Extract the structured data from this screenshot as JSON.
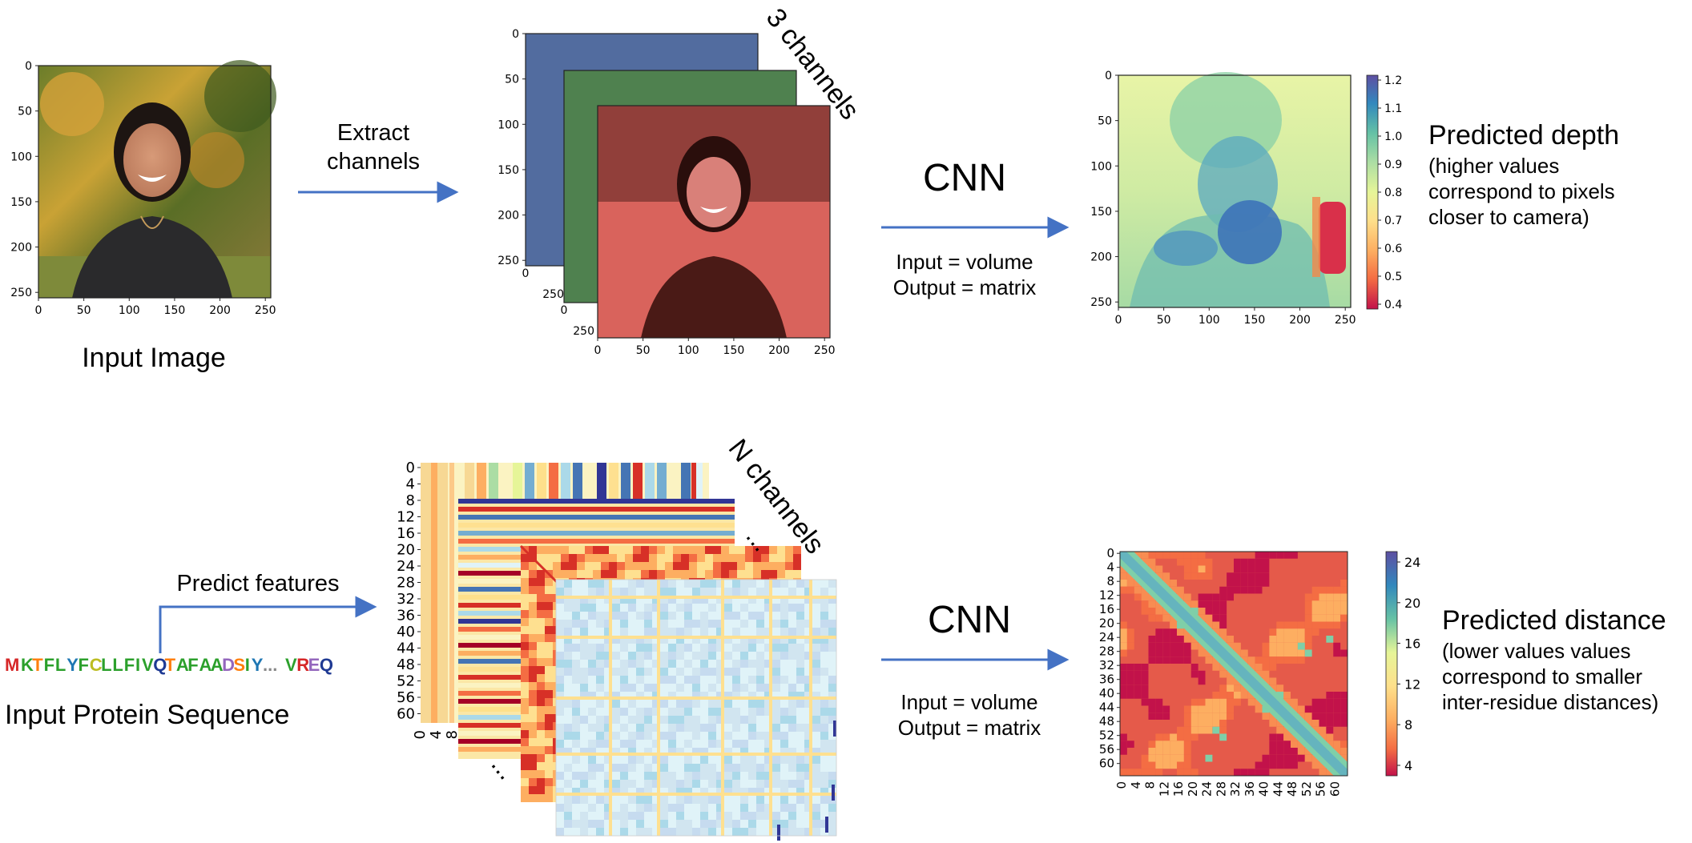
{
  "top": {
    "input_label": "Input Image",
    "arrow1_label": [
      "Extract",
      "channels"
    ],
    "channels_label": "3 channels",
    "cnn_label": "CNN",
    "cnn_io": [
      "Input = volume",
      "Output = matrix"
    ],
    "output_title": "Predicted depth",
    "output_desc": [
      "(higher values",
      "correspond to pixels",
      "closer to camera)"
    ],
    "img_ticks": [
      "0",
      "50",
      "100",
      "150",
      "200",
      "250"
    ],
    "colorbar_ticks": [
      "1.2",
      "1.1",
      "1.0",
      "0.9",
      "0.8",
      "0.7",
      "0.6",
      "0.5",
      "0.4"
    ],
    "channel_colors": [
      "#4a6fb5",
      "#4e9a4e",
      "#c9504a"
    ]
  },
  "bottom": {
    "sequence": [
      {
        "t": "M",
        "c": "#d62728"
      },
      {
        "t": "K",
        "c": "#2ca02c"
      },
      {
        "t": "T",
        "c": "#ff7f0e"
      },
      {
        "t": "F",
        "c": "#2ca02c"
      },
      {
        "t": "L",
        "c": "#2ca02c"
      },
      {
        "t": "Y",
        "c": "#1f77b4"
      },
      {
        "t": "F",
        "c": "#2ca02c"
      },
      {
        "t": "C",
        "c": "#bcbd22"
      },
      {
        "t": "L",
        "c": "#2ca02c"
      },
      {
        "t": "L",
        "c": "#2ca02c"
      },
      {
        "t": "F",
        "c": "#2ca02c"
      },
      {
        "t": "I",
        "c": "#2ca02c"
      },
      {
        "t": "V",
        "c": "#2ca02c"
      },
      {
        "t": "Q",
        "c": "#1f3a93"
      },
      {
        "t": "T",
        "c": "#ff7f0e"
      },
      {
        "t": "A",
        "c": "#2ca02c"
      },
      {
        "t": "F",
        "c": "#2ca02c"
      },
      {
        "t": "A",
        "c": "#2ca02c"
      },
      {
        "t": "A",
        "c": "#2ca02c"
      },
      {
        "t": "D",
        "c": "#9467bd"
      },
      {
        "t": "S",
        "c": "#ff7f0e"
      },
      {
        "t": "I",
        "c": "#2ca02c"
      },
      {
        "t": "Y",
        "c": "#1f77b4"
      },
      {
        "t": "...",
        "c": "#888888"
      },
      {
        "t": "V",
        "c": "#2ca02c"
      },
      {
        "t": "R",
        "c": "#d62728"
      },
      {
        "t": "E",
        "c": "#9467bd"
      },
      {
        "t": "Q",
        "c": "#1f3a93"
      }
    ],
    "input_label": "Input Protein Sequence",
    "arrow_label": "Predict features",
    "channels_label": "N channels",
    "ellipsis": "...",
    "cnn_label": "CNN",
    "cnn_io": [
      "Input = volume",
      "Output = matrix"
    ],
    "output_title": "Predicted distance",
    "output_desc": [
      "(lower values values",
      "correspond to smaller",
      "inter-residue distances)"
    ],
    "feat_yticks": [
      "0",
      "4",
      "8",
      "12",
      "16",
      "20",
      "24",
      "28",
      "32",
      "36",
      "40",
      "44",
      "48",
      "52",
      "56",
      "60"
    ],
    "feat_xticks": [
      "0",
      "4",
      "8"
    ],
    "dist_ticks": [
      "0",
      "4",
      "8",
      "12",
      "16",
      "20",
      "24",
      "28",
      "32",
      "36",
      "40",
      "44",
      "48",
      "52",
      "56",
      "60"
    ],
    "colorbar_ticks": [
      "24",
      "20",
      "16",
      "12",
      "8",
      "4"
    ]
  },
  "arrow_color": "#4472c4"
}
